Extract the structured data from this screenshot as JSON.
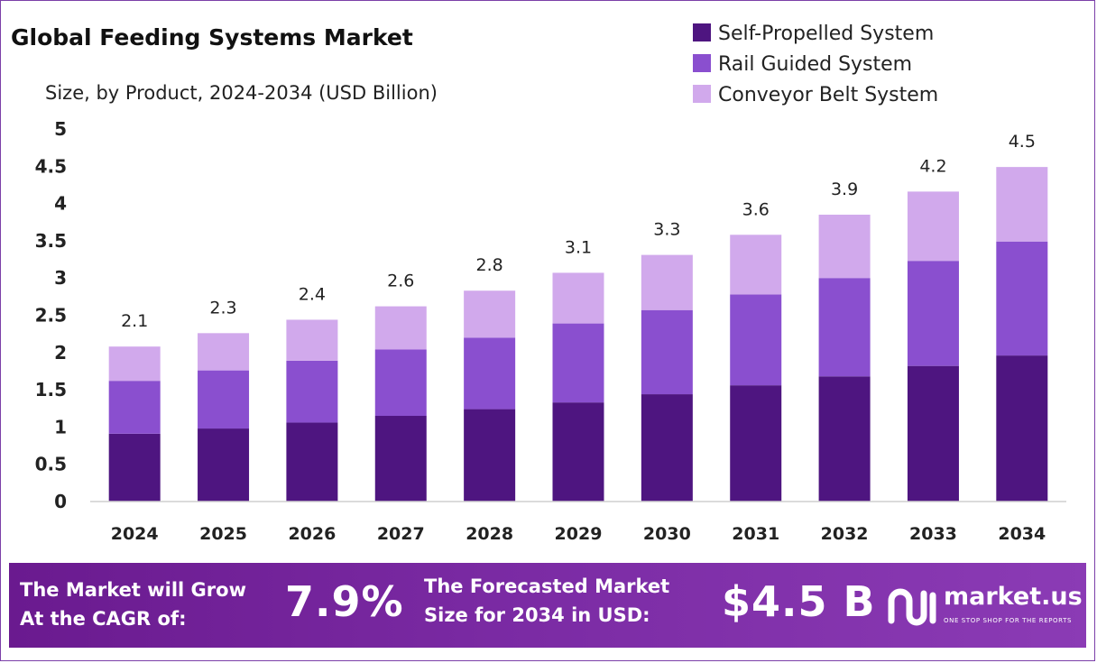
{
  "chart_data": {
    "type": "bar",
    "stacked": true,
    "title": "Global Feeding Systems Market",
    "subtitle": "Size, by Product, 2024-2034 (USD Billion)",
    "categories": [
      "2024",
      "2025",
      "2026",
      "2027",
      "2028",
      "2029",
      "2030",
      "2031",
      "2032",
      "2033",
      "2034"
    ],
    "series": [
      {
        "name": "Self-Propelled System",
        "color": "#4e1580",
        "values": [
          0.91,
          0.98,
          1.06,
          1.15,
          1.24,
          1.33,
          1.44,
          1.56,
          1.68,
          1.82,
          1.96
        ]
      },
      {
        "name": "Rail Guided System",
        "color": "#8a4fcf",
        "values": [
          0.71,
          0.78,
          0.83,
          0.89,
          0.96,
          1.06,
          1.13,
          1.22,
          1.32,
          1.41,
          1.53
        ]
      },
      {
        "name": "Conveyor Belt System",
        "color": "#d1a9ec",
        "values": [
          0.46,
          0.5,
          0.55,
          0.58,
          0.63,
          0.68,
          0.74,
          0.8,
          0.85,
          0.93,
          1.0
        ]
      }
    ],
    "totals": [
      "2.1",
      "2.3",
      "2.4",
      "2.6",
      "2.8",
      "3.1",
      "3.3",
      "3.6",
      "3.9",
      "4.2",
      "4.5"
    ],
    "yticks": [
      "0",
      "0.5",
      "1",
      "1.5",
      "2",
      "2.5",
      "3",
      "3.5",
      "4",
      "4.5",
      "5"
    ],
    "ylim": [
      0,
      5
    ],
    "legend_position": "top-right",
    "grid": false
  },
  "footer": {
    "cagr_text": "The Market will Grow\nAt the CAGR of:",
    "cagr_value": "7.9%",
    "forecast_text": "The Forecasted Market\nSize for 2034 in USD:",
    "forecast_value": "$4.5 B",
    "brand_name": "market.us",
    "brand_tagline": "ONE STOP SHOP FOR THE REPORTS",
    "brand_icon": "market-us-logo-icon"
  }
}
